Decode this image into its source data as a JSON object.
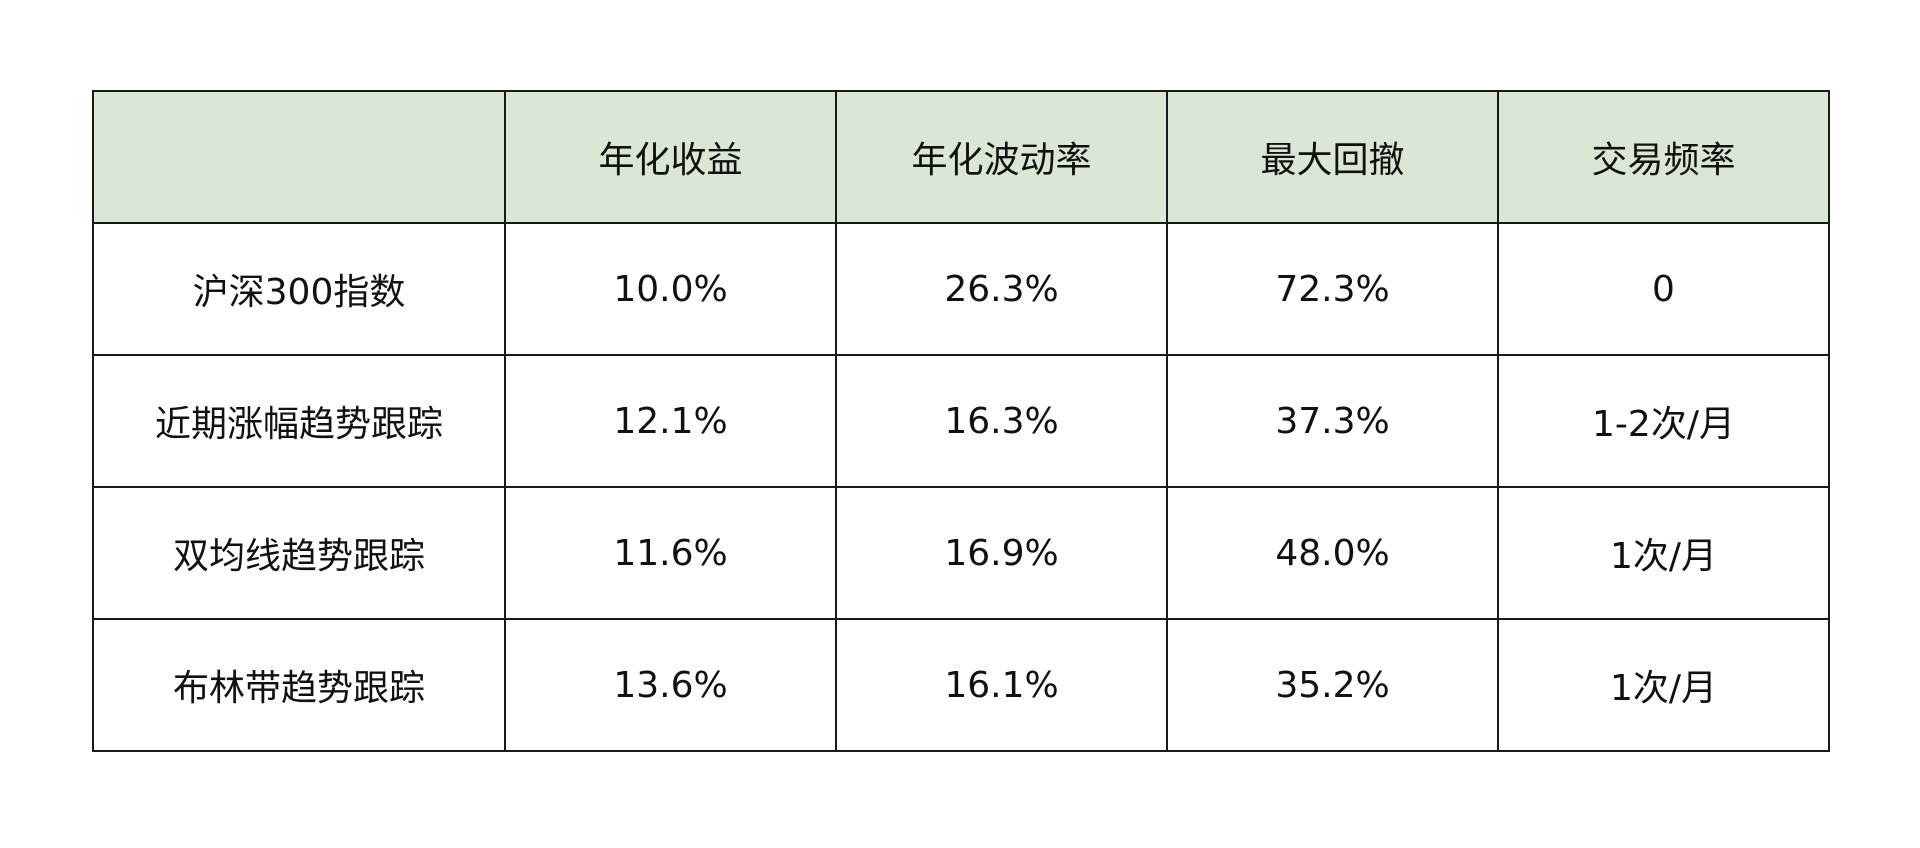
{
  "table": {
    "headers": [
      "",
      "年化收益",
      "年化波动率",
      "最大回撤",
      "交易频率"
    ],
    "rows": [
      [
        "沪深300指数",
        "10.0%",
        "26.3%",
        "72.3%",
        "0"
      ],
      [
        "近期涨幅趋势跟踪",
        "12.1%",
        "16.3%",
        "37.3%",
        "1-2次/月"
      ],
      [
        "双均线趋势跟踪",
        "11.6%",
        "16.9%",
        "48.0%",
        "1次/月"
      ],
      [
        "布林带趋势跟踪",
        "13.6%",
        "16.1%",
        "35.2%",
        "1次/月"
      ]
    ]
  },
  "colors": {
    "header_bg": "#d9e7d4",
    "border": "#1a1a1a"
  }
}
